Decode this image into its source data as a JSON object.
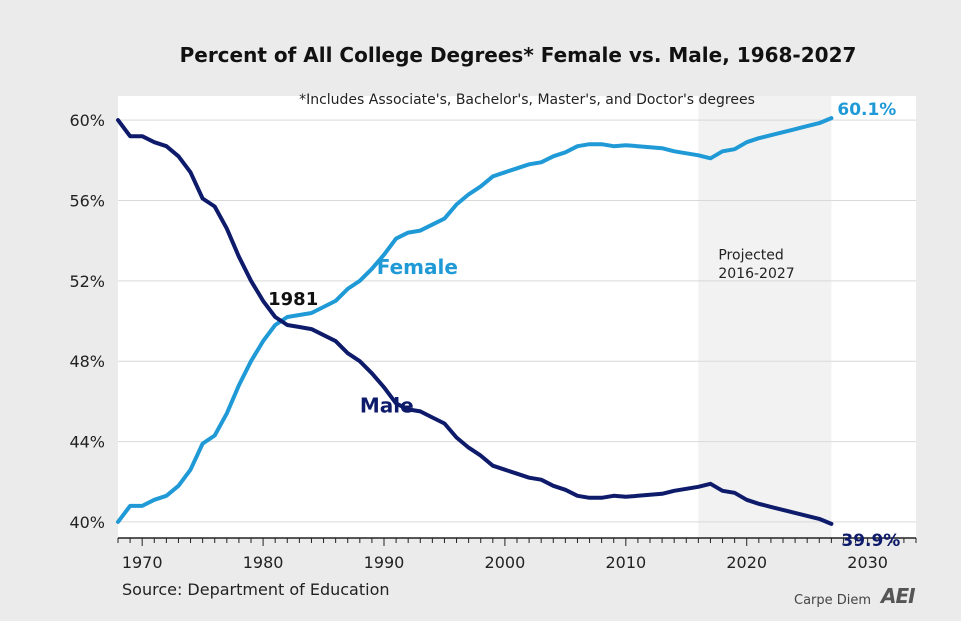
{
  "chart_data": {
    "type": "line",
    "title": "Percent of All College Degrees* Female vs. Male, 1968-2027",
    "subtitle": "*Includes Associate's, Bachelor's, Master's, and Doctor's degrees",
    "source": "Source: Department of Education",
    "branding": "Carpe Diem",
    "logo_text": "AEI",
    "xlim": [
      1968,
      2034
    ],
    "ylim": [
      39.2,
      61.2
    ],
    "x_ticks": [
      1970,
      1980,
      1990,
      2000,
      2010,
      2020,
      2030
    ],
    "x_tick_labels": [
      "1970",
      "1980",
      "1990",
      "2000",
      "2010",
      "2020",
      "2030"
    ],
    "y_ticks": [
      40,
      44,
      48,
      52,
      56,
      60
    ],
    "y_tick_labels": [
      "40%",
      "44%",
      "48%",
      "52%",
      "56%",
      "60%"
    ],
    "grid": "horizontal",
    "projected_region": {
      "x_start": 2016,
      "x_end": 2027,
      "label_line1": "Projected",
      "label_line2": "2016-2027"
    },
    "crossover": {
      "x": 1981,
      "label": "1981"
    },
    "end_labels": {
      "female": "60.1%",
      "male": "39.9%"
    },
    "x": [
      1968,
      1969,
      1970,
      1971,
      1972,
      1973,
      1974,
      1975,
      1976,
      1977,
      1978,
      1979,
      1980,
      1981,
      1982,
      1983,
      1984,
      1985,
      1986,
      1987,
      1988,
      1989,
      1990,
      1991,
      1992,
      1993,
      1994,
      1995,
      1996,
      1997,
      1998,
      1999,
      2000,
      2001,
      2002,
      2003,
      2004,
      2005,
      2006,
      2007,
      2008,
      2009,
      2010,
      2011,
      2012,
      2013,
      2014,
      2015,
      2016,
      2017,
      2018,
      2019,
      2020,
      2021,
      2022,
      2023,
      2024,
      2025,
      2026,
      2027
    ],
    "series": [
      {
        "name": "Female",
        "color": "#1f9ad6",
        "values": [
          40.0,
          40.8,
          40.8,
          41.1,
          41.3,
          41.8,
          42.6,
          43.9,
          44.3,
          45.4,
          46.8,
          48.0,
          49.0,
          49.8,
          50.2,
          50.3,
          50.4,
          50.7,
          51.0,
          51.6,
          52.0,
          52.6,
          53.3,
          54.1,
          54.4,
          54.5,
          54.8,
          55.1,
          55.8,
          56.3,
          56.7,
          57.2,
          57.4,
          57.6,
          57.8,
          57.9,
          58.2,
          58.4,
          58.7,
          58.8,
          58.8,
          58.7,
          58.75,
          58.7,
          58.65,
          58.6,
          58.45,
          58.35,
          58.25,
          58.1,
          58.45,
          58.55,
          58.9,
          59.1,
          59.25,
          59.4,
          59.55,
          59.7,
          59.85,
          60.1
        ]
      },
      {
        "name": "Male",
        "color": "#0e1b6b",
        "values": [
          60.0,
          59.2,
          59.2,
          58.9,
          58.7,
          58.2,
          57.4,
          56.1,
          55.7,
          54.6,
          53.2,
          52.0,
          51.0,
          50.2,
          49.8,
          49.7,
          49.6,
          49.3,
          49.0,
          48.4,
          48.0,
          47.4,
          46.7,
          45.9,
          45.6,
          45.5,
          45.2,
          44.9,
          44.2,
          43.7,
          43.3,
          42.8,
          42.6,
          42.4,
          42.2,
          42.1,
          41.8,
          41.6,
          41.3,
          41.2,
          41.2,
          41.3,
          41.25,
          41.3,
          41.35,
          41.4,
          41.55,
          41.65,
          41.75,
          41.9,
          41.55,
          41.45,
          41.1,
          40.9,
          40.75,
          40.6,
          40.45,
          40.3,
          40.15,
          39.9
        ]
      }
    ]
  }
}
